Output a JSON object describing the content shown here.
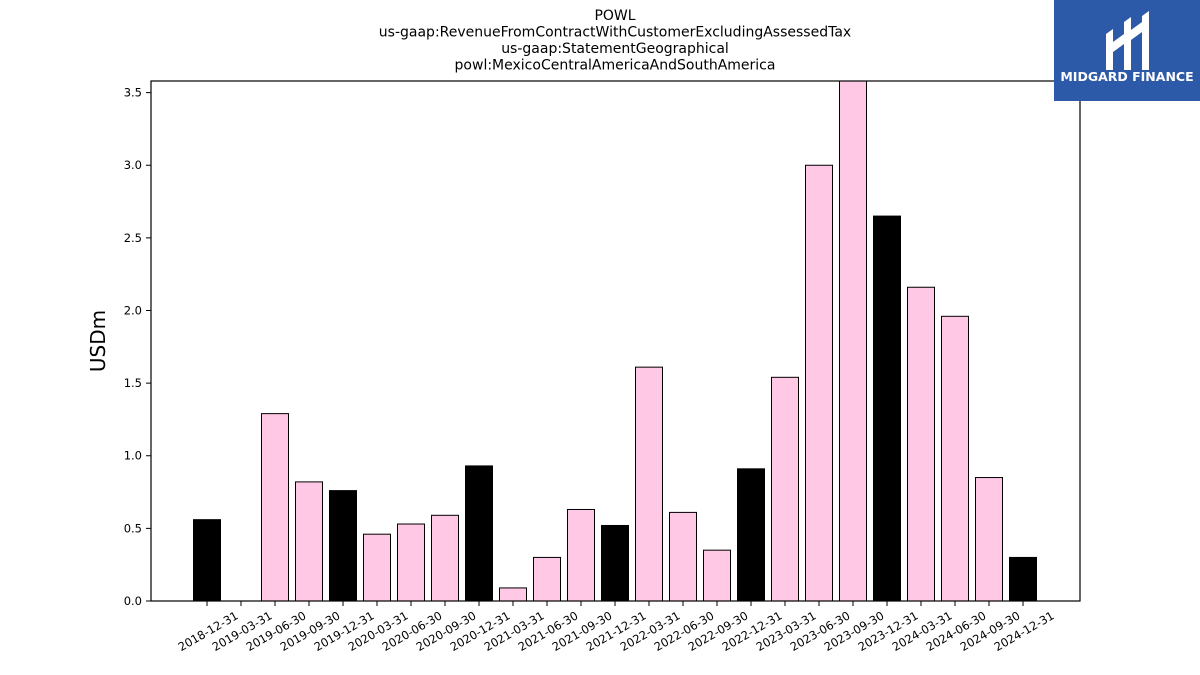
{
  "logo": {
    "text": "MIDGARD FINANCE",
    "bg_color": "#2d5aa8"
  },
  "chart_data": {
    "type": "bar",
    "title_lines": [
      "POWL",
      "us-gaap:RevenueFromContractWithCustomerExcludingAssessedTax",
      "us-gaap:StatementGeographical",
      "powl:MexicoCentralAmericaAndSouthAmerica"
    ],
    "ylabel": "USDm",
    "ylim": [
      0,
      3.58
    ],
    "yticks": [
      "0.0",
      "0.5",
      "1.0",
      "1.5",
      "2.0",
      "2.5",
      "3.0",
      "3.5"
    ],
    "grid": false,
    "colors": {
      "annual": "#000000",
      "quarterly": "#ffc8e4",
      "edge": "#000000"
    },
    "categories": [
      "2018-12-31",
      "2019-03-31",
      "2019-06-30",
      "2019-09-30",
      "2019-12-31",
      "2020-03-31",
      "2020-06-30",
      "2020-09-30",
      "2020-12-31",
      "2021-03-31",
      "2021-06-30",
      "2021-09-30",
      "2021-12-31",
      "2022-03-31",
      "2022-06-30",
      "2022-09-30",
      "2022-12-31",
      "2023-03-31",
      "2023-06-30",
      "2023-09-30",
      "2023-12-31",
      "2024-03-31",
      "2024-06-30",
      "2024-09-30",
      "2024-12-31"
    ],
    "values": [
      0.56,
      null,
      1.29,
      0.82,
      0.76,
      0.46,
      0.53,
      0.59,
      0.93,
      0.09,
      0.3,
      0.63,
      0.52,
      1.61,
      0.61,
      0.35,
      0.91,
      1.54,
      3.0,
      3.59,
      2.65,
      2.16,
      1.96,
      0.85,
      0.3
    ],
    "kind": [
      "annual",
      "quarterly",
      "quarterly",
      "quarterly",
      "annual",
      "quarterly",
      "quarterly",
      "quarterly",
      "annual",
      "quarterly",
      "quarterly",
      "quarterly",
      "annual",
      "quarterly",
      "quarterly",
      "quarterly",
      "annual",
      "quarterly",
      "quarterly",
      "quarterly",
      "annual",
      "quarterly",
      "quarterly",
      "quarterly",
      "annual"
    ]
  }
}
